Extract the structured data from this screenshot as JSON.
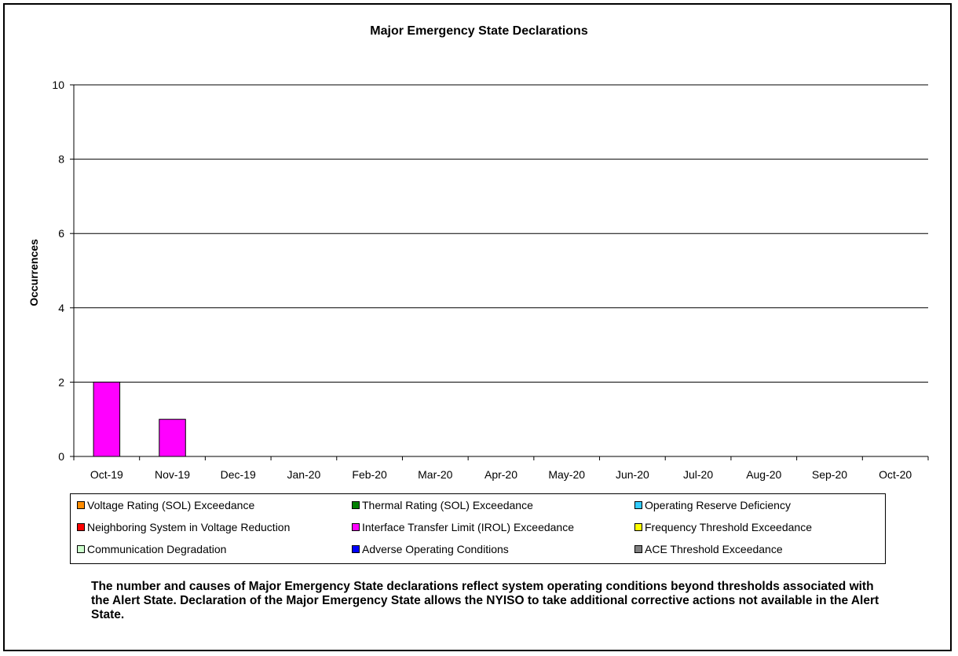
{
  "chart_data": {
    "type": "bar",
    "title": "Major Emergency State Declarations",
    "ylabel": "Occurrences",
    "xlabel": "",
    "ylim": [
      0,
      10
    ],
    "yticks": [
      0,
      2,
      4,
      6,
      8,
      10
    ],
    "grid": true,
    "legend_position": "bottom",
    "categories": [
      "Oct-19",
      "Nov-19",
      "Dec-19",
      "Jan-20",
      "Feb-20",
      "Mar-20",
      "Apr-20",
      "May-20",
      "Jun-20",
      "Jul-20",
      "Aug-20",
      "Sep-20",
      "Oct-20"
    ],
    "series": [
      {
        "name": "Voltage Rating (SOL) Exceedance",
        "color": "#ff8c00",
        "values": [
          0,
          0,
          0,
          0,
          0,
          0,
          0,
          0,
          0,
          0,
          0,
          0,
          0
        ]
      },
      {
        "name": "Thermal Rating (SOL) Exceedance",
        "color": "#008000",
        "values": [
          0,
          0,
          0,
          0,
          0,
          0,
          0,
          0,
          0,
          0,
          0,
          0,
          0
        ]
      },
      {
        "name": "Operating Reserve Deficiency",
        "color": "#33ccff",
        "values": [
          0,
          0,
          0,
          0,
          0,
          0,
          0,
          0,
          0,
          0,
          0,
          0,
          0
        ]
      },
      {
        "name": "Neighboring System in Voltage Reduction",
        "color": "#ff0000",
        "values": [
          0,
          0,
          0,
          0,
          0,
          0,
          0,
          0,
          0,
          0,
          0,
          0,
          0
        ]
      },
      {
        "name": "Interface Transfer Limit (IROL) Exceedance",
        "color": "#ff00ff",
        "values": [
          2,
          1,
          0,
          0,
          0,
          0,
          0,
          0,
          0,
          0,
          0,
          0,
          0
        ]
      },
      {
        "name": "Frequency Threshold Exceedance",
        "color": "#ffff00",
        "values": [
          0,
          0,
          0,
          0,
          0,
          0,
          0,
          0,
          0,
          0,
          0,
          0,
          0
        ]
      },
      {
        "name": "Communication Degradation",
        "color": "#ccffcc",
        "values": [
          0,
          0,
          0,
          0,
          0,
          0,
          0,
          0,
          0,
          0,
          0,
          0,
          0
        ]
      },
      {
        "name": "Adverse Operating Conditions",
        "color": "#0000ff",
        "values": [
          0,
          0,
          0,
          0,
          0,
          0,
          0,
          0,
          0,
          0,
          0,
          0,
          0
        ]
      },
      {
        "name": "ACE Threshold Exceedance",
        "color": "#808080",
        "values": [
          0,
          0,
          0,
          0,
          0,
          0,
          0,
          0,
          0,
          0,
          0,
          0,
          0
        ]
      }
    ]
  },
  "note": {
    "text": "The number and causes of Major Emergency State declarations reflect system operating conditions beyond thresholds associated with the Alert State.  Declaration of the Major Emergency State allows the NYISO to take additional corrective actions not available in the Alert State."
  }
}
